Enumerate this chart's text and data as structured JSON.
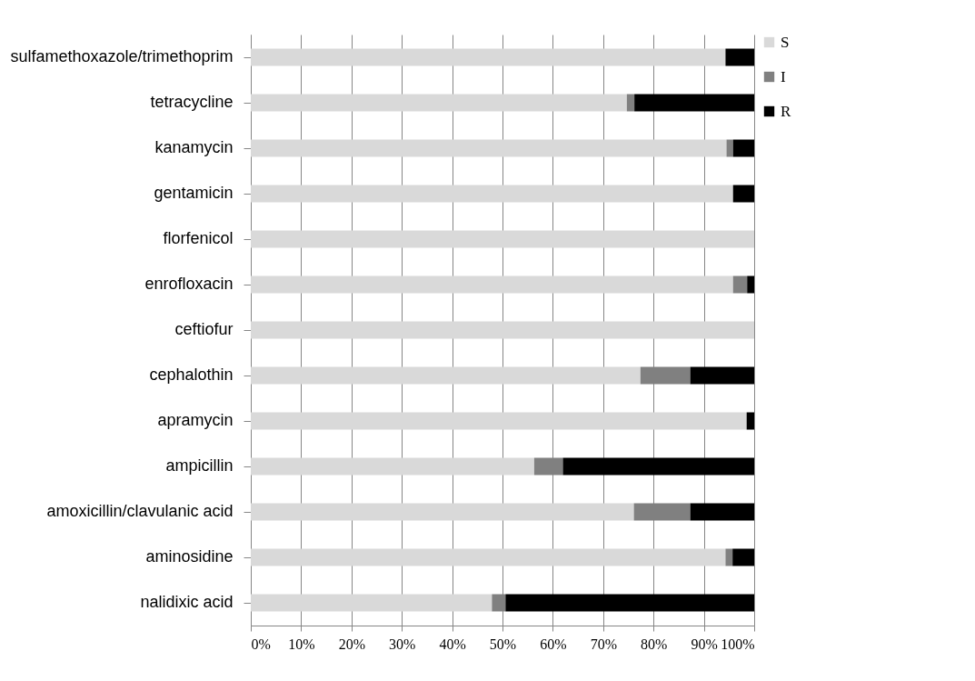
{
  "chart_data": {
    "type": "bar",
    "orientation": "horizontal",
    "stacked": true,
    "categories": [
      "sulfamethoxazole/trimethoprim",
      "tetracycline",
      "kanamycin",
      "gentamicin",
      "florfenicol",
      "enrofloxacin",
      "ceftiofur",
      "cephalothin",
      "apramycin",
      "ampicillin",
      "amoxicillin/clavulanic acid",
      "aminosidine",
      "nalidixic acid"
    ],
    "series": [
      {
        "name": "S",
        "color": "#d9d9d9",
        "values": [
          94.3,
          74.7,
          94.5,
          95.8,
          100,
          95.8,
          100,
          77.4,
          98.5,
          56.3,
          76.1,
          94.3,
          47.9
        ]
      },
      {
        "name": "I",
        "color": "#808080",
        "values": [
          0,
          1.5,
          1.3,
          0,
          0,
          2.8,
          0,
          9.9,
          0,
          5.7,
          11.2,
          1.4,
          2.7
        ]
      },
      {
        "name": "R",
        "color": "#000000",
        "values": [
          5.7,
          23.8,
          4.2,
          4.2,
          0,
          1.4,
          0,
          12.7,
          1.5,
          38.0,
          12.7,
          4.3,
          49.4
        ]
      }
    ],
    "xlim": [
      0,
      100
    ],
    "xticks": [
      {
        "value": 0,
        "label": "0%"
      },
      {
        "value": 10,
        "label": "10%"
      },
      {
        "value": 20,
        "label": "20%"
      },
      {
        "value": 30,
        "label": "30%"
      },
      {
        "value": 40,
        "label": "40%"
      },
      {
        "value": 50,
        "label": "50%"
      },
      {
        "value": 60,
        "label": "60%"
      },
      {
        "value": 70,
        "label": "70%"
      },
      {
        "value": 80,
        "label": "80%"
      },
      {
        "value": 90,
        "label": "90%"
      },
      {
        "value": 100,
        "label": "100%"
      }
    ],
    "grid": "x",
    "legend": "right"
  }
}
